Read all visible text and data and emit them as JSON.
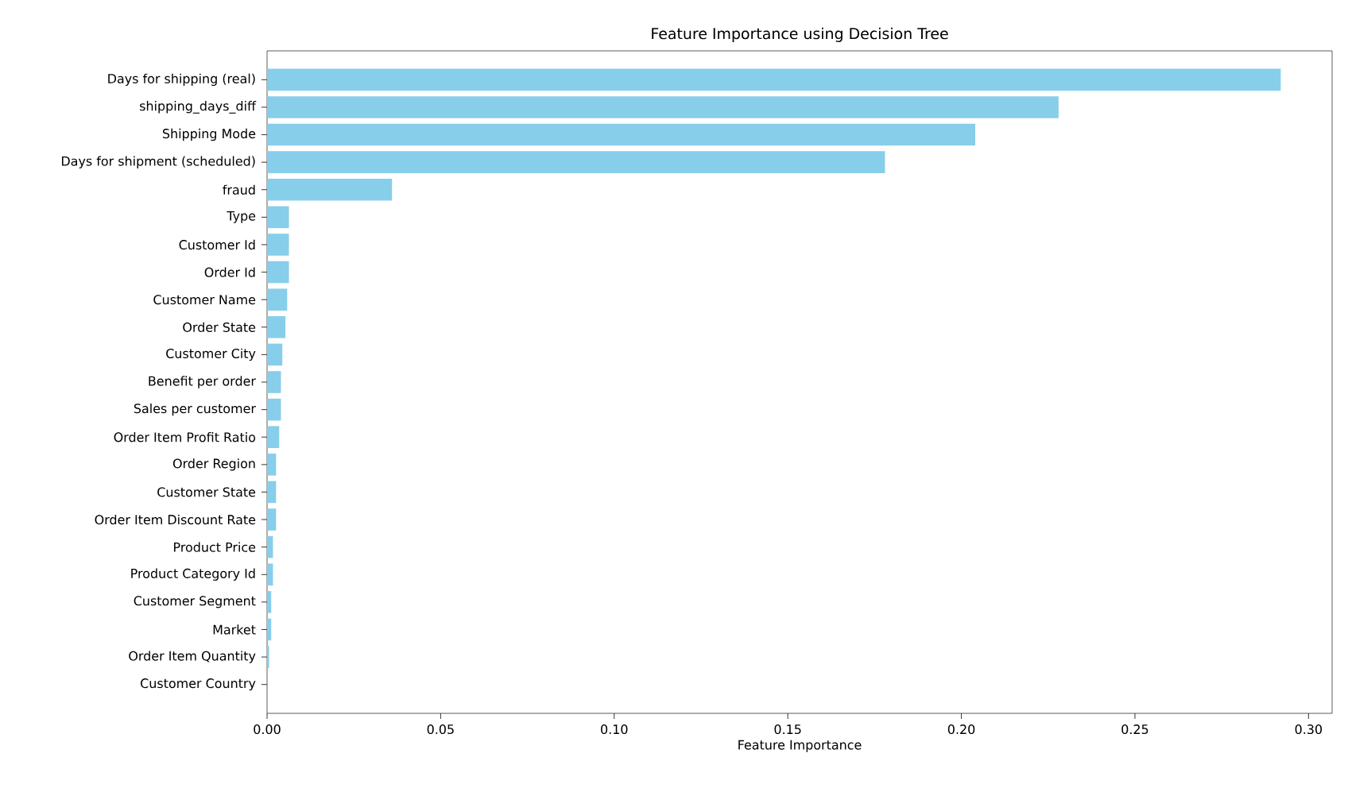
{
  "chart_data": {
    "type": "bar",
    "title": "Feature Importance using Decision Tree",
    "xlabel": "Feature Importance",
    "categories": [
      "Days for shipping (real)",
      "shipping_days_diff",
      "Shipping Mode",
      "Days for shipment (scheduled)",
      "fraud",
      "Type",
      "Customer Id",
      "Order Id",
      "Customer Name",
      "Order State",
      "Customer City",
      "Benefit per order",
      "Sales per customer",
      "Order Item Profit Ratio",
      "Order Region",
      "Customer State",
      "Order Item Discount Rate",
      "Product Price",
      "Product Category Id",
      "Customer Segment",
      "Market",
      "Order Item Quantity",
      "Customer Country"
    ],
    "values": [
      0.292,
      0.228,
      0.204,
      0.178,
      0.036,
      0.0063,
      0.0063,
      0.0063,
      0.0058,
      0.0053,
      0.0044,
      0.004,
      0.004,
      0.0035,
      0.0026,
      0.0026,
      0.0026,
      0.0017,
      0.0017,
      0.0012,
      0.0012,
      0.0006,
      null
    ],
    "color": "#87ceeb",
    "xlim": [
      0,
      0.3068
    ],
    "xticks": [
      {
        "value": 0,
        "label": "0.00"
      },
      {
        "value": 0.05,
        "label": "0.05"
      },
      {
        "value": 0.1,
        "label": "0.10"
      },
      {
        "value": 0.15,
        "label": "0.15"
      },
      {
        "value": 0.2,
        "label": "0.20"
      },
      {
        "value": 0.25,
        "label": "0.25"
      },
      {
        "value": 0.3,
        "label": "0.30"
      }
    ],
    "orientation": "horizontal"
  }
}
